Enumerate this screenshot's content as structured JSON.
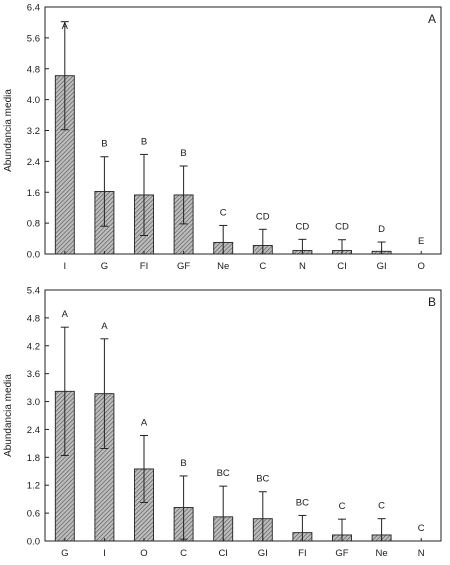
{
  "chart_data": [
    {
      "type": "bar",
      "panel_label": "A",
      "ylabel": "Abundancia media",
      "xlabel": "",
      "ylim": [
        0,
        6.4
      ],
      "yticks": [
        "0.0",
        "0.8",
        "1.6",
        "2.4",
        "3.2",
        "4.0",
        "4.8",
        "5.6",
        "6.4"
      ],
      "categories": [
        "I",
        "G",
        "FI",
        "GF",
        "Ne",
        "C",
        "N",
        "CI",
        "GI",
        "O"
      ],
      "values": [
        4.62,
        1.62,
        1.53,
        1.53,
        0.3,
        0.22,
        0.09,
        0.09,
        0.07,
        0.0
      ],
      "errors": [
        1.4,
        0.9,
        1.05,
        0.75,
        0.44,
        0.42,
        0.29,
        0.28,
        0.24,
        0.0
      ],
      "letters": [
        "A",
        "B",
        "B",
        "B",
        "C",
        "CD",
        "CD",
        "CD",
        "D",
        "E"
      ]
    },
    {
      "type": "bar",
      "panel_label": "B",
      "ylabel": "Abundancia media",
      "xlabel": "",
      "ylim": [
        0,
        5.4
      ],
      "yticks": [
        "0.0",
        "0.6",
        "1.2",
        "1.8",
        "2.4",
        "3.0",
        "3.6",
        "4.2",
        "4.8",
        "5.4"
      ],
      "categories": [
        "G",
        "I",
        "O",
        "C",
        "CI",
        "GI",
        "FI",
        "GF",
        "Ne",
        "N"
      ],
      "values": [
        3.22,
        3.17,
        1.55,
        0.72,
        0.52,
        0.48,
        0.18,
        0.13,
        0.13,
        0.0
      ],
      "errors": [
        1.38,
        1.18,
        0.72,
        0.68,
        0.66,
        0.58,
        0.37,
        0.34,
        0.35,
        0.0
      ],
      "letters": [
        "A",
        "A",
        "A",
        "B",
        "BC",
        "BC",
        "BC",
        "C",
        "C",
        "C"
      ]
    }
  ]
}
